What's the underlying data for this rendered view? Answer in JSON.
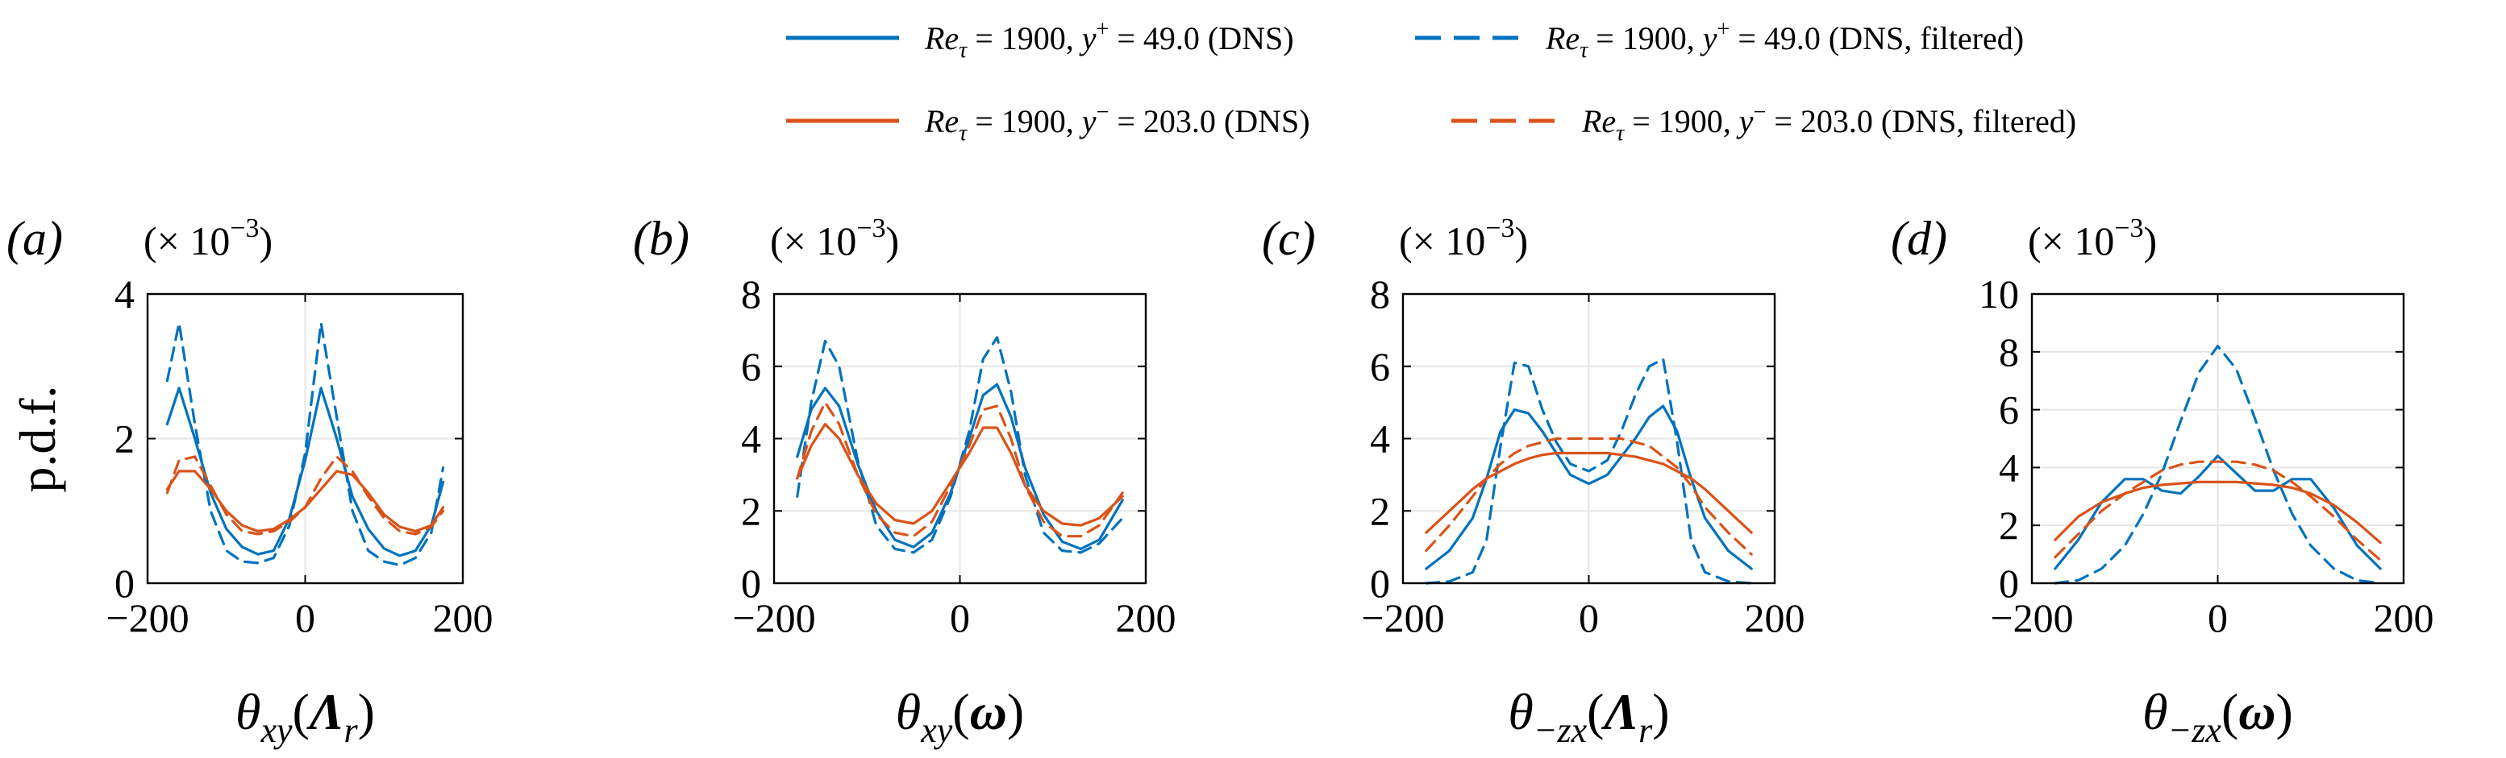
{
  "colors": {
    "blue": "#0072BD",
    "orange": "#D95319",
    "grid": "#e6e6e6",
    "axis": "#000000"
  },
  "legend": {
    "entries": [
      {
        "series": "re1900_yp49_dns",
        "color": "#0072BD",
        "style": "solid",
        "prefix": "Re",
        "sub": "τ",
        "text1": " = 1900, ",
        "yvar": "y",
        "sup": "+",
        "text2": " = 49.0 (DNS)"
      },
      {
        "series": "re1900_yp49_filt",
        "color": "#0072BD",
        "style": "dashed",
        "prefix": "Re",
        "sub": "τ",
        "text1": " = 1900, ",
        "yvar": "y",
        "sup": "+",
        "text2": " = 49.0 (DNS, filtered)"
      },
      {
        "series": "re1900_ym203_dns",
        "color": "#D95319",
        "style": "solid",
        "prefix": "Re",
        "sub": "τ",
        "text1": " = 1900, ",
        "yvar": "y",
        "sup": "−",
        "text2": " = 203.0 (DNS)"
      },
      {
        "series": "re1900_ym203_filt",
        "color": "#D95319",
        "style": "dashed",
        "prefix": "Re",
        "sub": "τ",
        "text1": " = 1900, ",
        "yvar": "y",
        "sup": "−",
        "text2": " = 203.0 (DNS, filtered)"
      }
    ]
  },
  "ylabel": "p.d.f.",
  "chart_data": [
    {
      "type": "line",
      "panel_label": "(a)",
      "multiplier": "(× 10",
      "multiplier_exp": "−3",
      "multiplier_close": ")",
      "xlabel": {
        "main": "θ",
        "sub": "xy",
        "open": "(",
        "arg": "Λ",
        "argsub": "r",
        "close": ")"
      },
      "xlim": [
        -200,
        200
      ],
      "ylim": [
        0,
        4
      ],
      "xticks": [
        -200,
        0,
        200
      ],
      "xtick_labels": [
        "−200",
        "0",
        "200"
      ],
      "yticks": [
        0,
        2,
        4
      ],
      "ytick_labels": [
        "0",
        "2",
        "4"
      ],
      "grid": true,
      "x": [
        -175,
        -160,
        -140,
        -120,
        -100,
        -80,
        -60,
        -40,
        -20,
        0,
        20,
        40,
        60,
        80,
        100,
        120,
        140,
        160,
        175
      ],
      "series": [
        {
          "name": "Re_τ = 1900, y+ = 49.0 (DNS)",
          "color": "#0072BD",
          "dash": "solid",
          "values": [
            2.2,
            2.7,
            2.0,
            1.25,
            0.75,
            0.5,
            0.4,
            0.45,
            0.9,
            1.7,
            2.7,
            2.0,
            1.2,
            0.75,
            0.48,
            0.38,
            0.45,
            0.8,
            1.4
          ]
        },
        {
          "name": "Re_τ = 1900, y+ = 49.0 (DNS, filtered)",
          "color": "#0072BD",
          "dash": "dashed",
          "values": [
            2.8,
            3.6,
            2.2,
            1.0,
            0.45,
            0.3,
            0.28,
            0.35,
            0.8,
            1.8,
            3.6,
            2.3,
            1.0,
            0.45,
            0.3,
            0.25,
            0.35,
            0.7,
            1.6
          ]
        },
        {
          "name": "Re_τ = 1900, y− = 203.0 (DNS)",
          "color": "#D95319",
          "dash": "solid",
          "values": [
            1.3,
            1.55,
            1.55,
            1.3,
            1.0,
            0.8,
            0.72,
            0.75,
            0.88,
            1.05,
            1.3,
            1.55,
            1.5,
            1.25,
            0.95,
            0.78,
            0.72,
            0.8,
            1.05
          ]
        },
        {
          "name": "Re_τ = 1900, y− = 203.0 (DNS, filtered)",
          "color": "#D95319",
          "dash": "dashed",
          "values": [
            1.25,
            1.7,
            1.75,
            1.35,
            0.95,
            0.72,
            0.68,
            0.72,
            0.85,
            1.05,
            1.45,
            1.75,
            1.55,
            1.2,
            0.9,
            0.72,
            0.68,
            0.78,
            1.0
          ]
        }
      ]
    },
    {
      "type": "line",
      "panel_label": "(b)",
      "multiplier": "(× 10",
      "multiplier_exp": "−3",
      "multiplier_close": ")",
      "xlabel": {
        "main": "θ",
        "sub": "xy",
        "open": "(",
        "arg": "ω",
        "argsub": "",
        "close": ")"
      },
      "xlim": [
        -200,
        200
      ],
      "ylim": [
        0,
        8
      ],
      "xticks": [
        -200,
        0,
        200
      ],
      "xtick_labels": [
        "−200",
        "0",
        "200"
      ],
      "yticks": [
        0,
        2,
        4,
        6,
        8
      ],
      "ytick_labels": [
        "0",
        "2",
        "4",
        "6",
        "8"
      ],
      "grid": true,
      "x": [
        -175,
        -160,
        -145,
        -130,
        -110,
        -90,
        -70,
        -50,
        -30,
        -10,
        10,
        25,
        40,
        55,
        70,
        90,
        110,
        130,
        150,
        175
      ],
      "series": [
        {
          "name": "Re_τ = 1900, y+ = 49.0 (DNS)",
          "color": "#0072BD",
          "dash": "solid",
          "values": [
            3.5,
            4.8,
            5.4,
            4.9,
            3.3,
            2.0,
            1.2,
            1.0,
            1.4,
            2.5,
            4.0,
            5.2,
            5.5,
            4.6,
            3.2,
            1.9,
            1.15,
            0.95,
            1.2,
            2.3
          ]
        },
        {
          "name": "Re_τ = 1900, y+ = 49.0 (DNS, filtered)",
          "color": "#0072BD",
          "dash": "dashed",
          "values": [
            2.4,
            5.0,
            6.7,
            6.0,
            3.4,
            1.6,
            0.95,
            0.85,
            1.2,
            2.4,
            4.2,
            6.2,
            6.8,
            5.3,
            3.0,
            1.4,
            0.9,
            0.85,
            1.1,
            1.8
          ]
        },
        {
          "name": "Re_τ = 1900, y− = 203.0 (DNS)",
          "color": "#D95319",
          "dash": "solid",
          "values": [
            2.9,
            3.8,
            4.4,
            4.0,
            3.0,
            2.2,
            1.75,
            1.65,
            2.0,
            2.8,
            3.6,
            4.3,
            4.3,
            3.6,
            2.7,
            2.0,
            1.65,
            1.6,
            1.8,
            2.4
          ]
        },
        {
          "name": "Re_τ = 1900, y− = 203.0 (DNS, filtered)",
          "color": "#D95319",
          "dash": "dashed",
          "values": [
            2.9,
            4.2,
            5.0,
            4.4,
            3.0,
            1.9,
            1.4,
            1.3,
            1.7,
            2.7,
            3.8,
            4.8,
            4.9,
            4.0,
            2.7,
            1.7,
            1.3,
            1.3,
            1.6,
            2.5
          ]
        }
      ]
    },
    {
      "type": "line",
      "panel_label": "(c)",
      "multiplier": "(× 10",
      "multiplier_exp": "−3",
      "multiplier_close": ")",
      "xlabel": {
        "main": "θ",
        "sub": "−zx",
        "open": "(",
        "arg": "Λ",
        "argsub": "r",
        "close": ")"
      },
      "xlim": [
        -200,
        200
      ],
      "ylim": [
        0,
        8
      ],
      "xticks": [
        -200,
        0,
        200
      ],
      "xtick_labels": [
        "−200",
        "0",
        "200"
      ],
      "yticks": [
        0,
        2,
        4,
        6,
        8
      ],
      "ytick_labels": [
        "0",
        "2",
        "4",
        "6",
        "8"
      ],
      "grid": true,
      "x": [
        -175,
        -150,
        -125,
        -110,
        -95,
        -80,
        -65,
        -50,
        -35,
        -20,
        0,
        20,
        35,
        50,
        65,
        80,
        95,
        110,
        125,
        150,
        175
      ],
      "series": [
        {
          "name": "Re_τ = 1900, y+ = 49.0 (DNS)",
          "color": "#0072BD",
          "dash": "solid",
          "values": [
            0.4,
            0.9,
            1.8,
            2.9,
            4.2,
            4.8,
            4.7,
            4.2,
            3.6,
            3.0,
            2.75,
            3.0,
            3.5,
            4.0,
            4.6,
            4.9,
            4.2,
            2.9,
            1.8,
            0.9,
            0.4
          ]
        },
        {
          "name": "Re_τ = 1900, y+ = 49.0 (DNS, filtered)",
          "color": "#0072BD",
          "dash": "dashed",
          "values": [
            0.0,
            0.05,
            0.3,
            1.2,
            3.8,
            6.1,
            6.0,
            4.8,
            3.9,
            3.3,
            3.1,
            3.4,
            4.2,
            5.2,
            6.0,
            6.2,
            3.9,
            1.2,
            0.3,
            0.05,
            0.0
          ]
        },
        {
          "name": "Re_τ = 1900, y− = 203.0 (DNS)",
          "color": "#D95319",
          "dash": "solid",
          "values": [
            1.4,
            2.0,
            2.6,
            2.9,
            3.1,
            3.3,
            3.45,
            3.55,
            3.6,
            3.6,
            3.6,
            3.6,
            3.55,
            3.5,
            3.4,
            3.3,
            3.1,
            2.9,
            2.6,
            2.0,
            1.4
          ]
        },
        {
          "name": "Re_τ = 1900, y− = 203.0 (DNS, filtered)",
          "color": "#D95319",
          "dash": "dashed",
          "values": [
            0.9,
            1.6,
            2.4,
            2.9,
            3.3,
            3.6,
            3.8,
            3.9,
            4.0,
            4.0,
            4.0,
            4.0,
            4.0,
            3.9,
            3.8,
            3.5,
            3.2,
            2.7,
            2.1,
            1.4,
            0.8
          ]
        }
      ]
    },
    {
      "type": "line",
      "panel_label": "(d)",
      "multiplier": "(× 10",
      "multiplier_exp": "−3",
      "multiplier_close": ")",
      "xlabel": {
        "main": "θ",
        "sub": "−zx",
        "open": "(",
        "arg": "ω",
        "argsub": "",
        "close": ")"
      },
      "xlim": [
        -200,
        200
      ],
      "ylim": [
        0,
        10
      ],
      "xticks": [
        -200,
        0,
        200
      ],
      "xtick_labels": [
        "−200",
        "0",
        "200"
      ],
      "yticks": [
        0,
        2,
        4,
        6,
        8,
        10
      ],
      "ytick_labels": [
        "0",
        "2",
        "4",
        "6",
        "8",
        "10"
      ],
      "grid": true,
      "x": [
        -175,
        -150,
        -125,
        -100,
        -80,
        -60,
        -40,
        -20,
        0,
        20,
        40,
        60,
        80,
        100,
        125,
        150,
        175
      ],
      "series": [
        {
          "name": "Re_τ = 1900, y+ = 49.0 (DNS)",
          "color": "#0072BD",
          "dash": "solid",
          "values": [
            0.5,
            1.5,
            2.8,
            3.6,
            3.6,
            3.2,
            3.1,
            3.7,
            4.4,
            3.8,
            3.2,
            3.2,
            3.6,
            3.6,
            2.6,
            1.3,
            0.5
          ]
        },
        {
          "name": "Re_τ = 1900, y+ = 49.0 (DNS, filtered)",
          "color": "#0072BD",
          "dash": "dashed",
          "values": [
            0.0,
            0.1,
            0.5,
            1.3,
            2.4,
            3.8,
            5.6,
            7.3,
            8.2,
            7.4,
            5.7,
            3.9,
            2.4,
            1.3,
            0.5,
            0.1,
            0.0
          ]
        },
        {
          "name": "Re_τ = 1900, y− = 203.0 (DNS)",
          "color": "#D95319",
          "dash": "solid",
          "values": [
            1.5,
            2.3,
            2.8,
            3.1,
            3.3,
            3.4,
            3.45,
            3.5,
            3.5,
            3.5,
            3.45,
            3.4,
            3.3,
            3.1,
            2.7,
            2.1,
            1.4
          ]
        },
        {
          "name": "Re_τ = 1900, y− = 203.0 (DNS, filtered)",
          "color": "#D95319",
          "dash": "dashed",
          "values": [
            0.9,
            1.7,
            2.5,
            3.1,
            3.5,
            3.9,
            4.1,
            4.2,
            4.2,
            4.2,
            4.1,
            3.9,
            3.5,
            3.0,
            2.3,
            1.5,
            0.8
          ]
        }
      ]
    }
  ]
}
